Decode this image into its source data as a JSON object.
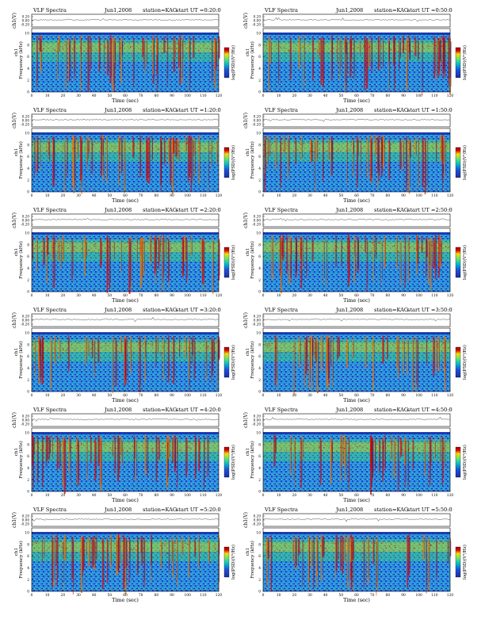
{
  "page": {
    "columns": 2,
    "rows": 6
  },
  "common": {
    "title_left": "VLF Spectra",
    "date": "Jun1,2008",
    "station": "station=KAG",
    "start_prefix": "start  UT =",
    "xlabel": "Time (sec)",
    "ylabel_freq": "Frequency (kHz)",
    "ylabel_ch": "ch1",
    "ylabel_amp": "ch1(V)",
    "colorbar_label": "log(PSD)(V²/Hz)",
    "x_ticks": [
      "0",
      "10",
      "20",
      "30",
      "40",
      "50",
      "60",
      "70",
      "80",
      "90",
      "100",
      "110",
      "120"
    ],
    "freq_ticks": [
      "0",
      "2",
      "4",
      "6",
      "8",
      "10"
    ],
    "amp_ticks": [
      "0.20",
      "0.00",
      "-0.20"
    ],
    "colors": {
      "bg_low": "#1f4fd8",
      "mid": "#00c0c8",
      "high": "#f0e000",
      "peak": "#e00000",
      "trace": "#000000"
    }
  },
  "chart_data": [
    {
      "type": "heatmap",
      "start_ut": "0:20:0",
      "xlim": [
        0,
        120
      ],
      "ylim": [
        0,
        10
      ],
      "amp_ylim": [
        -0.2,
        0.2
      ]
    },
    {
      "type": "heatmap",
      "start_ut": "0:50:0",
      "xlim": [
        0,
        120
      ],
      "ylim": [
        0,
        10
      ],
      "amp_ylim": [
        -0.2,
        0.2
      ]
    },
    {
      "type": "heatmap",
      "start_ut": "1:20:0",
      "xlim": [
        0,
        120
      ],
      "ylim": [
        0,
        10
      ],
      "amp_ylim": [
        -0.2,
        0.2
      ]
    },
    {
      "type": "heatmap",
      "start_ut": "1:50:0",
      "xlim": [
        0,
        120
      ],
      "ylim": [
        0,
        10
      ],
      "amp_ylim": [
        -0.2,
        0.2
      ]
    },
    {
      "type": "heatmap",
      "start_ut": "2:20:0",
      "xlim": [
        0,
        120
      ],
      "ylim": [
        0,
        10
      ],
      "amp_ylim": [
        -0.2,
        0.2
      ]
    },
    {
      "type": "heatmap",
      "start_ut": "2:50:0",
      "xlim": [
        0,
        120
      ],
      "ylim": [
        0,
        10
      ],
      "amp_ylim": [
        -0.2,
        0.2
      ]
    },
    {
      "type": "heatmap",
      "start_ut": "3:20:0",
      "xlim": [
        0,
        120
      ],
      "ylim": [
        0,
        10
      ],
      "amp_ylim": [
        -0.2,
        0.2
      ]
    },
    {
      "type": "heatmap",
      "start_ut": "3:50:0",
      "xlim": [
        0,
        120
      ],
      "ylim": [
        0,
        10
      ],
      "amp_ylim": [
        -0.2,
        0.2
      ]
    },
    {
      "type": "heatmap",
      "start_ut": "4:20:0",
      "xlim": [
        0,
        120
      ],
      "ylim": [
        0,
        10
      ],
      "amp_ylim": [
        -0.2,
        0.2
      ]
    },
    {
      "type": "heatmap",
      "start_ut": "4:50:0",
      "xlim": [
        0,
        120
      ],
      "ylim": [
        0,
        10
      ],
      "amp_ylim": [
        -0.2,
        0.2
      ]
    },
    {
      "type": "heatmap",
      "start_ut": "5:20:0",
      "xlim": [
        0,
        120
      ],
      "ylim": [
        0,
        10
      ],
      "amp_ylim": [
        -0.2,
        0.2
      ]
    },
    {
      "type": "heatmap",
      "start_ut": "5:50:0",
      "xlim": [
        0,
        120
      ],
      "ylim": [
        0,
        10
      ],
      "amp_ylim": [
        -0.2,
        0.2
      ]
    }
  ]
}
